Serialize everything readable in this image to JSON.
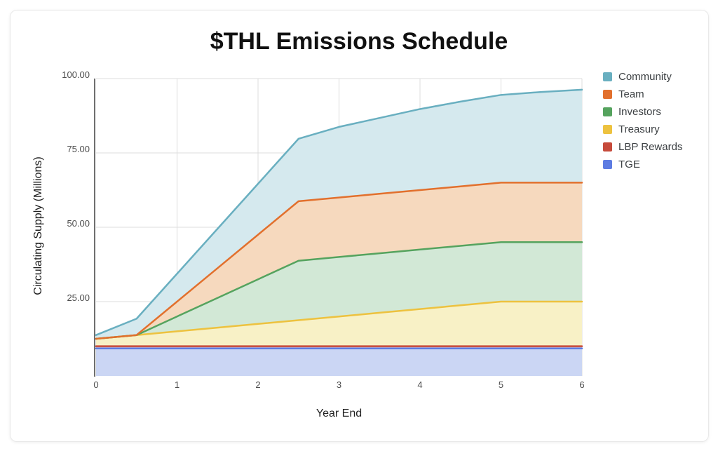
{
  "card": {
    "background": "#ffffff",
    "border_color": "#e9e9e9"
  },
  "chart_data": {
    "type": "area",
    "stacked": true,
    "title": "$THL Emissions Schedule",
    "xlabel": "Year End",
    "ylabel": "Circulating Supply (Millions)",
    "xlim": [
      0,
      6
    ],
    "ylim": [
      0,
      100
    ],
    "grid": true,
    "legend_position": "right",
    "x": [
      0,
      0.5,
      1,
      1.5,
      2,
      2.5,
      3,
      3.5,
      4,
      4.5,
      5,
      5.5,
      6
    ],
    "x_ticks": [
      {
        "value": 0,
        "label": "0"
      },
      {
        "value": 1,
        "label": "1"
      },
      {
        "value": 2,
        "label": "2"
      },
      {
        "value": 3,
        "label": "3"
      },
      {
        "value": 4,
        "label": "4"
      },
      {
        "value": 5,
        "label": "5"
      },
      {
        "value": 6,
        "label": "6"
      }
    ],
    "y_ticks": [
      {
        "value": 25,
        "label": "25.00"
      },
      {
        "value": 50,
        "label": "50.00"
      },
      {
        "value": 75,
        "label": "75.00"
      },
      {
        "value": 100,
        "label": "100.00"
      }
    ],
    "series": [
      {
        "name": "Community",
        "stroke": "#69AFC0",
        "fill": "#D5E9EE",
        "values": [
          1.25,
          5.5,
          9.375,
          13.25,
          17.125,
          21,
          23.75,
          25.5,
          27.25,
          28.5,
          29.5,
          30.5,
          31.25
        ]
      },
      {
        "name": "Team",
        "stroke": "#E2702D",
        "fill": "#F6D9BE",
        "values": [
          0,
          0,
          5,
          10,
          15,
          20,
          20,
          20,
          20,
          20,
          20,
          20,
          20
        ]
      },
      {
        "name": "Investors",
        "stroke": "#55A35E",
        "fill": "#D2E8D6",
        "values": [
          0,
          0,
          5,
          10,
          15,
          20,
          20,
          20,
          20,
          20,
          20,
          20,
          20
        ]
      },
      {
        "name": "Treasury",
        "stroke": "#EDC23F",
        "fill": "#F8F1C6",
        "values": [
          2.5,
          3.75,
          5,
          6.25,
          7.5,
          8.75,
          10,
          11.25,
          12.5,
          13.75,
          15,
          15,
          15
        ]
      },
      {
        "name": "LBP Rewards",
        "stroke": "#C64A3B",
        "fill": "#E9C4BE",
        "values": [
          0.75,
          0.75,
          0.75,
          0.75,
          0.75,
          0.75,
          0.75,
          0.75,
          0.75,
          0.75,
          0.75,
          0.75,
          0.75
        ]
      },
      {
        "name": "TGE",
        "stroke": "#5D7CE2",
        "fill": "#CBD6F4",
        "values": [
          9.25,
          9.25,
          9.25,
          9.25,
          9.25,
          9.25,
          9.25,
          9.25,
          9.25,
          9.25,
          9.25,
          9.25,
          9.25
        ]
      }
    ],
    "axis_color": "#6e6e6e",
    "gridline_color": "#dcdcdc",
    "tick_label_color": "#4d4d4d"
  }
}
